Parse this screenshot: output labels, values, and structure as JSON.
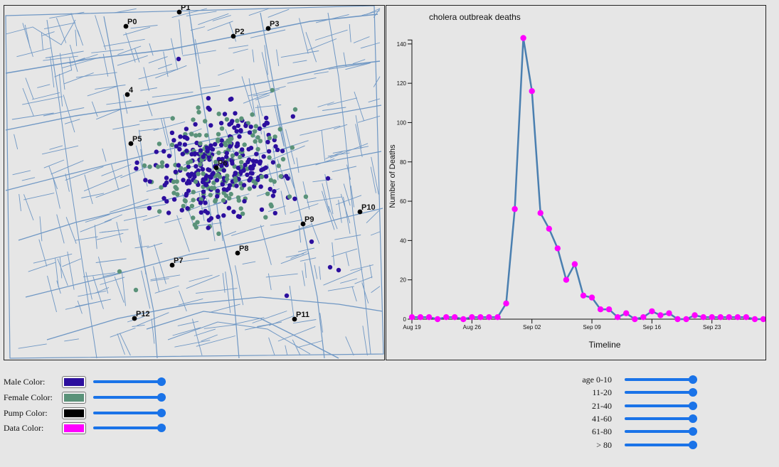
{
  "map": {
    "pumps": [
      {
        "label": "P0"
      },
      {
        "label": "P1"
      },
      {
        "label": "P2"
      },
      {
        "label": "P3"
      },
      {
        "label": "4"
      },
      {
        "label": "P5"
      },
      {
        "label": "P6"
      },
      {
        "label": "P7"
      },
      {
        "label": "P8"
      },
      {
        "label": "P9"
      },
      {
        "label": "P10"
      },
      {
        "label": "P11"
      },
      {
        "label": "P12"
      }
    ]
  },
  "chart_data": {
    "type": "line",
    "title": "cholera outbreak deaths",
    "xlabel": "Timeline",
    "ylabel": "Number of Deaths",
    "ylim": [
      0,
      145
    ],
    "yticks": [
      0,
      20,
      40,
      60,
      80,
      100,
      120,
      140
    ],
    "xtick_labels": [
      "Aug 19",
      "Aug 26",
      "Sep 02",
      "Sep 09",
      "Sep 16",
      "Sep 23"
    ],
    "x_start": "1854-08-19",
    "x_end": "1854-09-29",
    "values": [
      1,
      1,
      1,
      0,
      1,
      1,
      0,
      1,
      1,
      1,
      1,
      8,
      56,
      143,
      116,
      54,
      46,
      36,
      20,
      28,
      12,
      11,
      5,
      5,
      1,
      3,
      0,
      1,
      4,
      2,
      3,
      0,
      0,
      2,
      1,
      1,
      1,
      1,
      1,
      1,
      0,
      0
    ],
    "grid": false,
    "line_color": "#4a7fb0",
    "point_color": "#ff00ff"
  },
  "controls": {
    "male_label": "Male Color:",
    "female_label": "Female Color:",
    "pump_label": "Pump Color:",
    "data_label": "Data Color:",
    "male_color": "#2c0f9e",
    "female_color": "#5a9279",
    "pump_color": "#000000",
    "data_color": "#ff00ff",
    "sliders": [
      1.0,
      1.0,
      1.0,
      1.0
    ]
  },
  "age_filters": [
    {
      "label": "age 0-10",
      "value": 1.0
    },
    {
      "label": "11-20",
      "value": 1.0
    },
    {
      "label": "21-40",
      "value": 1.0
    },
    {
      "label": "41-60",
      "value": 1.0
    },
    {
      "label": "61-80",
      "value": 1.0
    },
    {
      "label": "> 80",
      "value": 1.0
    }
  ]
}
